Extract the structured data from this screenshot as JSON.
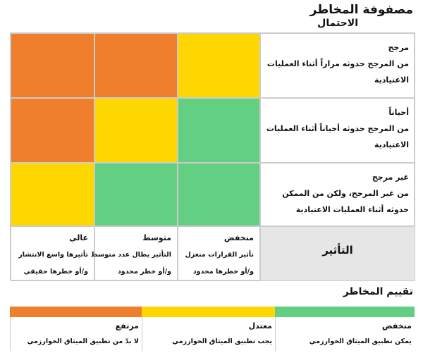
{
  "header": {
    "title": "مصفوفة المخاطر",
    "subtitle": "الاحتمال"
  },
  "rows": [
    {
      "label": "مرجح",
      "lines": [
        "من المرجح حدوثه مراراً أثناء العمليات",
        "الاعتيادية"
      ]
    },
    {
      "label": "أحياناً",
      "lines": [
        "من المرجح حدوثه أحياناً أثناء العمليات",
        "الاعتيادية"
      ]
    },
    {
      "label": "غير مرجح",
      "lines": [
        "من غير المرجح، ولكن من الممكن",
        "حدوثه أثناء العمليات الاعتيادية"
      ]
    }
  ],
  "impact": {
    "label": "التأثير",
    "columns": [
      {
        "label": "منخفض",
        "lines": [
          "تأثير القرارات منعزل",
          "و/أو خطرها محدود"
        ]
      },
      {
        "label": "متوسط",
        "lines": [
          "التأثير يطال عدد متوسط",
          "و/أو خطر محدود"
        ]
      },
      {
        "label": "عالي",
        "lines": [
          "تأثيرها واسع الانتشار",
          "و/أو خطرها حقيقي"
        ]
      }
    ]
  },
  "assessment": {
    "title": "تقييم المخاطر",
    "levels": [
      {
        "label": "منخفض",
        "text": "يمكن تطبيق الميثاق الخوارزمي"
      },
      {
        "label": "معتدل",
        "text": "يجب تطبيق الميثاق الخوارزمي"
      },
      {
        "label": "مرتفع",
        "text": "لا بدّ من تطبيق الميثاق الخوارزمي"
      }
    ]
  }
}
